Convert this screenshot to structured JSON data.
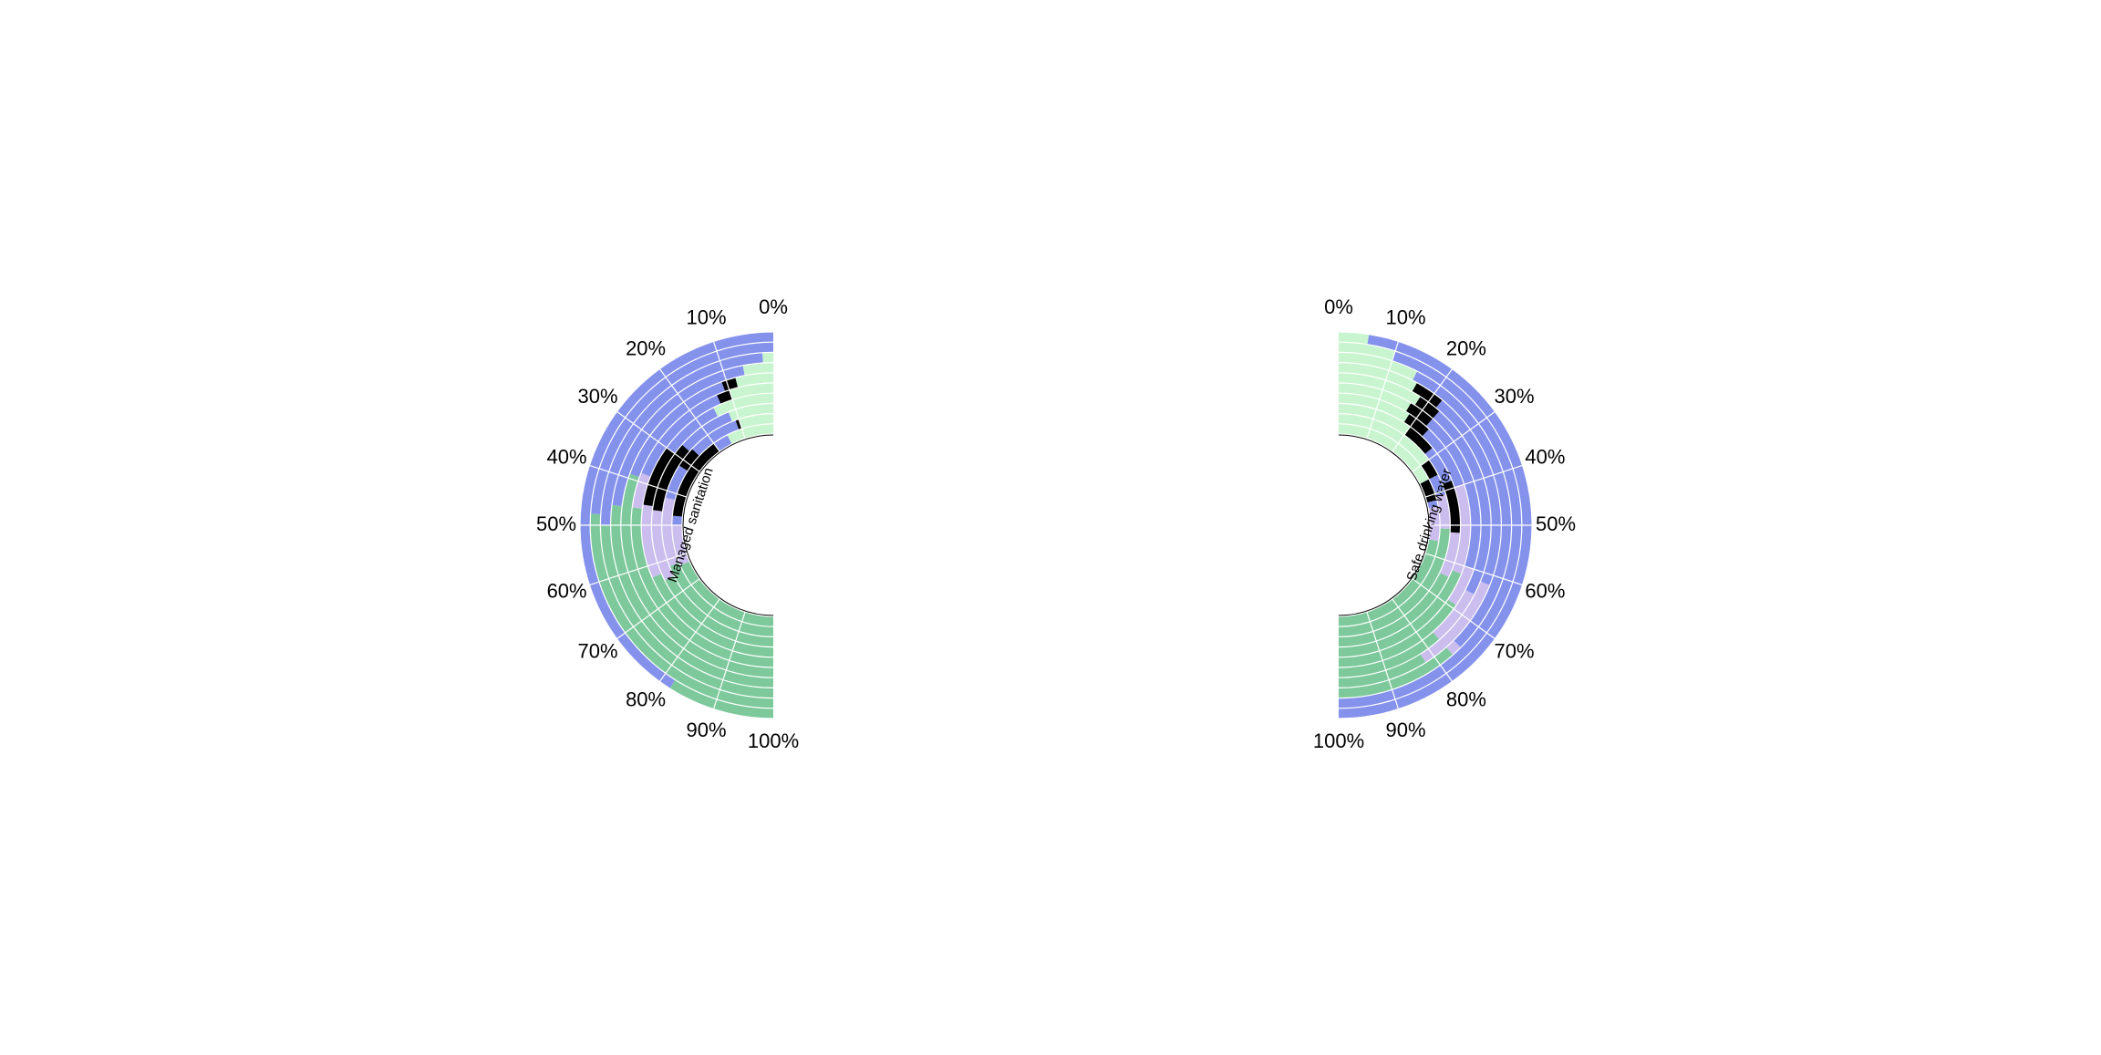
{
  "chart_data": {
    "type": "radial-stacked-bar",
    "colors": {
      "light_green": "#c8f5cf",
      "black": "#000000",
      "blue": "#8592ec",
      "lavender": "#cbbdee",
      "green": "#7dc99b",
      "background": "#ffffff",
      "divider": "#ffffff",
      "center_arc": "#000000"
    },
    "panels": [
      {
        "label": "Managed sanitation",
        "tick_labels": [
          "0%",
          "10%",
          "20%",
          "30%",
          "40%",
          "50%",
          "60%",
          "70%",
          "80%",
          "90%",
          "100%"
        ],
        "rings": [
          {
            "segments": [
              {
                "color": "light_green",
                "value": 15
              },
              {
                "color": "blue",
                "value": 5
              },
              {
                "color": "black",
                "value": 27
              },
              {
                "color": "blue",
                "value": 3
              },
              {
                "color": "lavender",
                "value": 13
              },
              {
                "color": "green",
                "value": 37
              }
            ]
          },
          {
            "segments": [
              {
                "color": "light_green",
                "value": 10
              },
              {
                "color": "black",
                "value": 1
              },
              {
                "color": "blue",
                "value": 15
              },
              {
                "color": "black",
                "value": 6
              },
              {
                "color": "blue",
                "value": 10
              },
              {
                "color": "lavender",
                "value": 20
              },
              {
                "color": "green",
                "value": 38
              }
            ]
          },
          {
            "segments": [
              {
                "color": "light_green",
                "value": 12
              },
              {
                "color": "blue",
                "value": 15
              },
              {
                "color": "black",
                "value": 19
              },
              {
                "color": "lavender",
                "value": 19
              },
              {
                "color": "green",
                "value": 35
              }
            ]
          },
          {
            "segments": [
              {
                "color": "light_green",
                "value": 15
              },
              {
                "color": "blue",
                "value": 15
              },
              {
                "color": "black",
                "value": 15
              },
              {
                "color": "lavender",
                "value": 18
              },
              {
                "color": "green",
                "value": 37
              }
            ]
          },
          {
            "segments": [
              {
                "color": "light_green",
                "value": 10
              },
              {
                "color": "black",
                "value": 3
              },
              {
                "color": "blue",
                "value": 25
              },
              {
                "color": "lavender",
                "value": 8
              },
              {
                "color": "green",
                "value": 54
              }
            ]
          },
          {
            "segments": [
              {
                "color": "light_green",
                "value": 8
              },
              {
                "color": "black",
                "value": 3
              },
              {
                "color": "blue",
                "value": 28
              },
              {
                "color": "green",
                "value": 61
              }
            ]
          },
          {
            "segments": [
              {
                "color": "light_green",
                "value": 6
              },
              {
                "color": "blue",
                "value": 40
              },
              {
                "color": "green",
                "value": 54
              }
            ]
          },
          {
            "segments": [
              {
                "color": "light_green",
                "value": 2
              },
              {
                "color": "blue",
                "value": 48
              },
              {
                "color": "green",
                "value": 50
              }
            ]
          },
          {
            "segments": [
              {
                "color": "blue",
                "value": 48
              },
              {
                "color": "green",
                "value": 52
              }
            ]
          },
          {
            "segments": [
              {
                "color": "blue",
                "value": 82
              },
              {
                "color": "green",
                "value": 18
              }
            ]
          }
        ]
      },
      {
        "label": "Safe drinking water",
        "tick_labels": [
          "0%",
          "10%",
          "20%",
          "30%",
          "40%",
          "50%",
          "60%",
          "70%",
          "80%",
          "90%",
          "100%"
        ],
        "rings": [
          {
            "segments": [
              {
                "color": "light_green",
                "value": 35
              },
              {
                "color": "black",
                "value": 7
              },
              {
                "color": "blue",
                "value": 2
              },
              {
                "color": "lavender",
                "value": 11
              },
              {
                "color": "green",
                "value": 45
              }
            ]
          },
          {
            "segments": [
              {
                "color": "light_green",
                "value": 30
              },
              {
                "color": "black",
                "value": 5
              },
              {
                "color": "blue",
                "value": 6
              },
              {
                "color": "lavender",
                "value": 10
              },
              {
                "color": "green",
                "value": 49
              }
            ]
          },
          {
            "segments": [
              {
                "color": "light_green",
                "value": 20
              },
              {
                "color": "black",
                "value": 8
              },
              {
                "color": "blue",
                "value": 10
              },
              {
                "color": "black",
                "value": 14
              },
              {
                "color": "lavender",
                "value": 12
              },
              {
                "color": "green",
                "value": 36
              }
            ]
          },
          {
            "segments": [
              {
                "color": "light_green",
                "value": 18
              },
              {
                "color": "black",
                "value": 6
              },
              {
                "color": "blue",
                "value": 16
              },
              {
                "color": "lavender",
                "value": 22
              },
              {
                "color": "green",
                "value": 38
              }
            ]
          },
          {
            "segments": [
              {
                "color": "light_green",
                "value": 17
              },
              {
                "color": "black",
                "value": 6
              },
              {
                "color": "blue",
                "value": 37
              },
              {
                "color": "lavender",
                "value": 9
              },
              {
                "color": "green",
                "value": 31
              }
            ]
          },
          {
            "segments": [
              {
                "color": "light_green",
                "value": 18
              },
              {
                "color": "black",
                "value": 5
              },
              {
                "color": "blue",
                "value": 42
              },
              {
                "color": "lavender",
                "value": 12
              },
              {
                "color": "green",
                "value": 23
              }
            ]
          },
          {
            "segments": [
              {
                "color": "light_green",
                "value": 16
              },
              {
                "color": "black",
                "value": 6
              },
              {
                "color": "blue",
                "value": 40
              },
              {
                "color": "lavender",
                "value": 20
              },
              {
                "color": "green",
                "value": 18
              }
            ]
          },
          {
            "segments": [
              {
                "color": "light_green",
                "value": 15
              },
              {
                "color": "blue",
                "value": 60
              },
              {
                "color": "lavender",
                "value": 2
              },
              {
                "color": "green",
                "value": 23
              }
            ]
          },
          {
            "segments": [
              {
                "color": "light_green",
                "value": 10
              },
              {
                "color": "blue",
                "value": 90
              }
            ]
          },
          {
            "segments": [
              {
                "color": "light_green",
                "value": 5
              },
              {
                "color": "blue",
                "value": 95
              }
            ]
          }
        ]
      }
    ]
  }
}
